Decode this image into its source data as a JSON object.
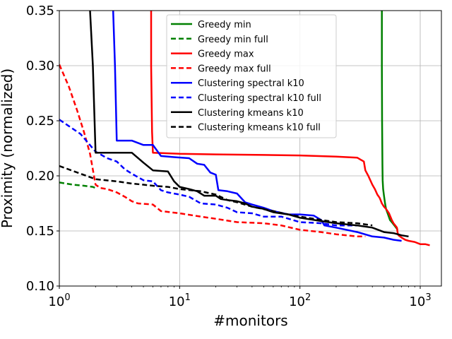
{
  "chart_data": {
    "type": "line",
    "xlabel": "#monitors",
    "ylabel": "Proximity (normalized)",
    "xscale": "log",
    "xlim": [
      1,
      1500
    ],
    "ylim": [
      0.1,
      0.35
    ],
    "grid": true,
    "legend_position": "top-center",
    "y_ticks": [
      "0.10",
      "0.15",
      "0.20",
      "0.25",
      "0.30",
      "0.35"
    ],
    "x_ticks": [
      {
        "value": 1,
        "base": "10",
        "exp": "0"
      },
      {
        "value": 10,
        "base": "10",
        "exp": "1"
      },
      {
        "value": 100,
        "base": "10",
        "exp": "2"
      },
      {
        "value": 1000,
        "base": "10",
        "exp": "3"
      }
    ],
    "series": [
      {
        "name": "Greedy min",
        "color": "#008000",
        "dash": "solid",
        "points": [
          [
            480,
            0.35
          ],
          [
            480,
            0.3
          ],
          [
            482,
            0.25
          ],
          [
            485,
            0.21
          ],
          [
            487,
            0.196
          ],
          [
            492,
            0.188
          ],
          [
            500,
            0.182
          ],
          [
            510,
            0.175
          ],
          [
            520,
            0.17
          ],
          [
            540,
            0.165
          ],
          [
            560,
            0.16
          ],
          [
            590,
            0.157
          ],
          [
            620,
            0.154
          ],
          [
            650,
            0.151
          ]
        ]
      },
      {
        "name": "Greedy min full",
        "color": "#008000",
        "dash": "dashed",
        "points": [
          [
            1.0,
            0.194
          ],
          [
            1.3,
            0.192
          ],
          [
            1.6,
            0.191
          ],
          [
            1.9,
            0.19
          ],
          [
            2.0,
            0.189
          ]
        ]
      },
      {
        "name": "Greedy max",
        "color": "#ff0000",
        "dash": "solid",
        "points": [
          [
            5.8,
            0.35
          ],
          [
            5.8,
            0.3
          ],
          [
            5.9,
            0.24
          ],
          [
            6.0,
            0.221
          ],
          [
            10,
            0.22
          ],
          [
            20,
            0.2195
          ],
          [
            50,
            0.219
          ],
          [
            100,
            0.2185
          ],
          [
            200,
            0.2175
          ],
          [
            300,
            0.2165
          ],
          [
            340,
            0.213
          ],
          [
            350,
            0.205
          ],
          [
            370,
            0.2
          ],
          [
            400,
            0.192
          ],
          [
            420,
            0.188
          ],
          [
            440,
            0.183
          ],
          [
            460,
            0.18
          ],
          [
            480,
            0.175
          ],
          [
            500,
            0.172
          ],
          [
            520,
            0.17
          ],
          [
            550,
            0.166
          ],
          [
            580,
            0.16
          ],
          [
            600,
            0.157
          ],
          [
            620,
            0.155
          ],
          [
            640,
            0.153
          ],
          [
            650,
            0.148
          ],
          [
            660,
            0.146
          ],
          [
            700,
            0.144
          ],
          [
            750,
            0.142
          ],
          [
            800,
            0.141
          ],
          [
            900,
            0.14
          ],
          [
            1000,
            0.138
          ],
          [
            1100,
            0.138
          ],
          [
            1200,
            0.137
          ]
        ]
      },
      {
        "name": "Greedy max full",
        "color": "#ff0000",
        "dash": "dashed",
        "points": [
          [
            1.0,
            0.301
          ],
          [
            1.2,
            0.281
          ],
          [
            1.4,
            0.26
          ],
          [
            1.6,
            0.24
          ],
          [
            1.8,
            0.22
          ],
          [
            2.0,
            0.192
          ],
          [
            2.2,
            0.189
          ],
          [
            2.5,
            0.188
          ],
          [
            3.0,
            0.185
          ],
          [
            3.5,
            0.181
          ],
          [
            4.0,
            0.177
          ],
          [
            4.5,
            0.175
          ],
          [
            6.0,
            0.174
          ],
          [
            7.0,
            0.168
          ],
          [
            10,
            0.166
          ],
          [
            15,
            0.163
          ],
          [
            20,
            0.161
          ],
          [
            30,
            0.158
          ],
          [
            50,
            0.157
          ],
          [
            70,
            0.155
          ],
          [
            100,
            0.151
          ],
          [
            150,
            0.149
          ],
          [
            200,
            0.147
          ],
          [
            300,
            0.145
          ],
          [
            350,
            0.145
          ]
        ]
      },
      {
        "name": "Clustering spectral k10",
        "color": "#0000ff",
        "dash": "solid",
        "points": [
          [
            2.8,
            0.35
          ],
          [
            2.9,
            0.3
          ],
          [
            3.0,
            0.232
          ],
          [
            4.0,
            0.232
          ],
          [
            5.0,
            0.228
          ],
          [
            6.0,
            0.228
          ],
          [
            7.0,
            0.218
          ],
          [
            9.0,
            0.217
          ],
          [
            12,
            0.216
          ],
          [
            14,
            0.211
          ],
          [
            16,
            0.21
          ],
          [
            18,
            0.203
          ],
          [
            20,
            0.201
          ],
          [
            21,
            0.187
          ],
          [
            25,
            0.186
          ],
          [
            30,
            0.184
          ],
          [
            35,
            0.176
          ],
          [
            40,
            0.174
          ],
          [
            50,
            0.171
          ],
          [
            60,
            0.168
          ],
          [
            80,
            0.165
          ],
          [
            100,
            0.165
          ],
          [
            130,
            0.164
          ],
          [
            150,
            0.16
          ],
          [
            160,
            0.155
          ],
          [
            200,
            0.153
          ],
          [
            300,
            0.149
          ],
          [
            400,
            0.145
          ],
          [
            500,
            0.144
          ],
          [
            600,
            0.142
          ],
          [
            700,
            0.141
          ]
        ]
      },
      {
        "name": "Clustering spectral k10 full",
        "color": "#0000ff",
        "dash": "dashed",
        "points": [
          [
            1.0,
            0.251
          ],
          [
            1.5,
            0.238
          ],
          [
            2.0,
            0.222
          ],
          [
            2.5,
            0.216
          ],
          [
            3.0,
            0.213
          ],
          [
            3.5,
            0.206
          ],
          [
            4.0,
            0.202
          ],
          [
            5.0,
            0.196
          ],
          [
            6.0,
            0.195
          ],
          [
            7.0,
            0.187
          ],
          [
            8.0,
            0.185
          ],
          [
            10,
            0.183
          ],
          [
            12,
            0.181
          ],
          [
            15,
            0.175
          ],
          [
            20,
            0.174
          ],
          [
            25,
            0.171
          ],
          [
            30,
            0.167
          ],
          [
            40,
            0.166
          ],
          [
            50,
            0.163
          ],
          [
            70,
            0.163
          ],
          [
            100,
            0.158
          ],
          [
            150,
            0.157
          ],
          [
            200,
            0.155
          ],
          [
            300,
            0.155
          ]
        ]
      },
      {
        "name": "Clustering kmeans k10",
        "color": "#000000",
        "dash": "solid",
        "points": [
          [
            1.8,
            0.35
          ],
          [
            1.9,
            0.3
          ],
          [
            2.0,
            0.221
          ],
          [
            4.0,
            0.221
          ],
          [
            5.0,
            0.212
          ],
          [
            6.0,
            0.205
          ],
          [
            8.0,
            0.204
          ],
          [
            9.0,
            0.195
          ],
          [
            10,
            0.19
          ],
          [
            12,
            0.188
          ],
          [
            14,
            0.186
          ],
          [
            16,
            0.182
          ],
          [
            20,
            0.182
          ],
          [
            22,
            0.179
          ],
          [
            25,
            0.178
          ],
          [
            30,
            0.177
          ],
          [
            35,
            0.175
          ],
          [
            40,
            0.172
          ],
          [
            50,
            0.17
          ],
          [
            60,
            0.167
          ],
          [
            80,
            0.165
          ],
          [
            100,
            0.162
          ],
          [
            150,
            0.159
          ],
          [
            200,
            0.157
          ],
          [
            300,
            0.155
          ],
          [
            400,
            0.153
          ],
          [
            500,
            0.149
          ],
          [
            600,
            0.148
          ],
          [
            700,
            0.146
          ],
          [
            800,
            0.145
          ]
        ]
      },
      {
        "name": "Clustering kmeans k10 full",
        "color": "#000000",
        "dash": "dashed",
        "points": [
          [
            1.0,
            0.209
          ],
          [
            1.5,
            0.202
          ],
          [
            2.0,
            0.197
          ],
          [
            3.0,
            0.195
          ],
          [
            4.0,
            0.193
          ],
          [
            5.0,
            0.192
          ],
          [
            6.0,
            0.191
          ],
          [
            8.0,
            0.19
          ],
          [
            10,
            0.188
          ],
          [
            15,
            0.186
          ],
          [
            20,
            0.183
          ],
          [
            25,
            0.178
          ],
          [
            30,
            0.176
          ],
          [
            40,
            0.172
          ],
          [
            60,
            0.168
          ],
          [
            80,
            0.165
          ],
          [
            100,
            0.163
          ],
          [
            150,
            0.16
          ],
          [
            200,
            0.158
          ],
          [
            300,
            0.157
          ],
          [
            400,
            0.155
          ]
        ]
      }
    ]
  }
}
